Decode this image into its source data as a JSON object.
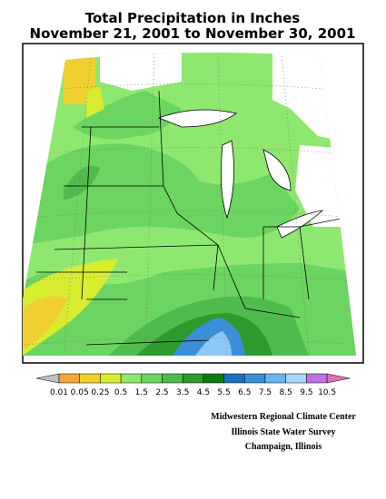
{
  "header": {
    "title": "Total Precipitation in Inches",
    "subtitle": "November 21, 2001 to November 30, 2001"
  },
  "legend": {
    "labels": [
      0.01,
      0.05,
      0.25,
      0.5,
      1.5,
      2.5,
      3.5,
      4.5,
      5.5,
      6.5,
      7.5,
      8.5,
      9.5,
      10.5
    ]
  },
  "credits": [
    "Midwestern Regional Climate Center",
    "Illinois State Water Survey",
    "Champaign, Illinois"
  ]
}
